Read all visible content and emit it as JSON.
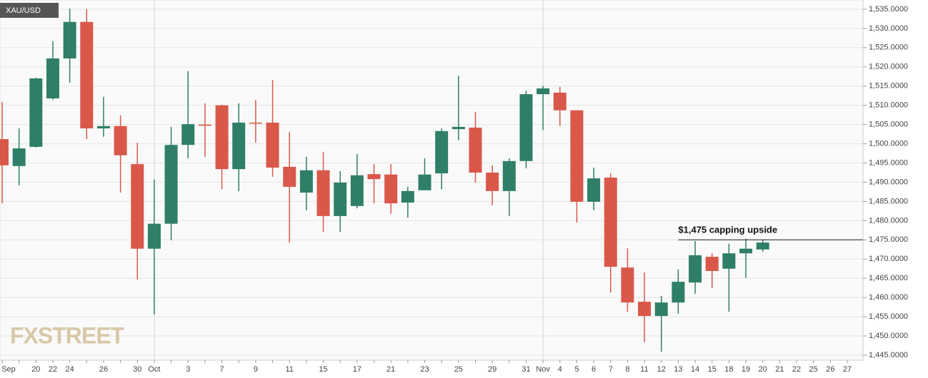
{
  "chart_data": {
    "type": "candlestick",
    "title": "XAU/USD",
    "watermark": "FXSTREET",
    "categories": [
      "Sep",
      null,
      "20",
      "22",
      "24",
      null,
      "26",
      null,
      "30",
      "Oct",
      null,
      "3",
      null,
      "7",
      null,
      "9",
      null,
      "11",
      null,
      "15",
      null,
      "17",
      null,
      "21",
      null,
      "23",
      null,
      "25",
      null,
      "29",
      null,
      "31",
      "Nov",
      "4",
      "5",
      "6",
      "7",
      "8",
      "11",
      "12",
      "13",
      "14",
      "15",
      "18",
      "19",
      "20",
      "21",
      "22",
      "25",
      "26",
      "27"
    ],
    "open": [
      1501.2,
      1494.2,
      1499.2,
      1511.8,
      1522.2,
      1531.7,
      1504.0,
      1504.6,
      1494.7,
      1472.7,
      1479.2,
      1499.7,
      1505.0,
      1510.0,
      1493.4,
      1505.5,
      1505.5,
      1494.0,
      1487.3,
      1493.1,
      1481.2,
      1483.8,
      1492.1,
      1492.0,
      1484.7,
      1487.9,
      1492.3,
      1503.8,
      1504.2,
      1492.5,
      1487.7,
      1495.5,
      1512.9,
      1513.3,
      1508.7,
      1484.9,
      1491.2,
      1467.8,
      1458.9,
      1455.2,
      1458.7,
      1463.9,
      1470.6,
      1467.5,
      1471.5,
      1472.5,
      null,
      null,
      null,
      null,
      null
    ],
    "high": [
      1510.9,
      1504.0,
      1517.2,
      1526.7,
      1535.2,
      1535.0,
      1512.2,
      1507.4,
      1500.3,
      1490.7,
      1504.4,
      1518.9,
      1510.5,
      1510.2,
      1510.5,
      1511.4,
      1516.6,
      1503.1,
      1496.6,
      1497.9,
      1492.9,
      1497.3,
      1494.7,
      1494.7,
      1488.8,
      1496.2,
      1504.0,
      1517.7,
      1508.3,
      1494.4,
      1496.2,
      1513.8,
      1515.1,
      1514.8,
      1508.7,
      1493.8,
      1492.3,
      1472.8,
      1466.5,
      1460.4,
      1467.3,
      1474.7,
      1471.5,
      1474.0,
      1475.3,
      1475.1,
      null,
      null,
      null,
      null,
      null
    ],
    "low": [
      1484.5,
      1489.2,
      1499.0,
      1511.4,
      1515.9,
      1501.2,
      1501.8,
      1487.3,
      1464.7,
      1455.6,
      1474.9,
      1496.2,
      1496.6,
      1488.2,
      1487.7,
      1500.3,
      1491.4,
      1474.3,
      1482.7,
      1477.1,
      1477.1,
      1483.2,
      1484.5,
      1481.8,
      1480.8,
      1487.9,
      1488.1,
      1500.9,
      1489.9,
      1484.0,
      1481.2,
      1493.6,
      1503.6,
      1504.6,
      1479.5,
      1482.7,
      1461.3,
      1456.3,
      1448.4,
      1445.9,
      1455.8,
      1461.0,
      1462.5,
      1456.3,
      1465.1,
      1471.9,
      null,
      null,
      null,
      null,
      null
    ],
    "close": [
      1494.4,
      1498.8,
      1517.0,
      1522.2,
      1531.7,
      1504.0,
      1504.6,
      1497.0,
      1472.7,
      1479.2,
      1499.7,
      1505.1,
      1504.7,
      1493.4,
      1505.5,
      1505.3,
      1493.8,
      1488.8,
      1493.1,
      1481.2,
      1489.9,
      1491.8,
      1490.8,
      1484.5,
      1487.7,
      1492.0,
      1503.3,
      1504.4,
      1492.5,
      1487.7,
      1495.5,
      1512.9,
      1514.4,
      1508.7,
      1484.9,
      1491.0,
      1468.0,
      1458.7,
      1455.2,
      1458.7,
      1464.1,
      1471.0,
      1466.9,
      1471.5,
      1472.7,
      1474.3,
      null,
      null,
      null,
      null,
      null
    ],
    "up_color": "#2f7f68",
    "down_color": "#d9584a",
    "ylim": [
      1443.7,
      1537.4
    ],
    "yticks": [
      {
        "value": 1445,
        "label": "1,445.0000"
      },
      {
        "value": 1450,
        "label": "1,450.0000"
      },
      {
        "value": 1455,
        "label": "1,455.0000"
      },
      {
        "value": 1460,
        "label": "1,460.0000"
      },
      {
        "value": 1465,
        "label": "1,465.0000"
      },
      {
        "value": 1470,
        "label": "1,470.0000"
      },
      {
        "value": 1475,
        "label": "1,475.0000"
      },
      {
        "value": 1480,
        "label": "1,480.0000"
      },
      {
        "value": 1485,
        "label": "1,485.0000"
      },
      {
        "value": 1490,
        "label": "1,490.0000"
      },
      {
        "value": 1495,
        "label": "1,495.0000"
      },
      {
        "value": 1500,
        "label": "1,500.0000"
      },
      {
        "value": 1505,
        "label": "1,505.0000"
      },
      {
        "value": 1510,
        "label": "1,510.0000"
      },
      {
        "value": 1515,
        "label": "1,515.0000"
      },
      {
        "value": 1520,
        "label": "1,520.0000"
      },
      {
        "value": 1525,
        "label": "1,525.0000"
      },
      {
        "value": 1530,
        "label": "1,530.0000"
      },
      {
        "value": 1535,
        "label": "1,535.0000"
      }
    ],
    "grid": true,
    "annotation": {
      "text": "$1,475 capping upside",
      "value": 1475
    }
  }
}
